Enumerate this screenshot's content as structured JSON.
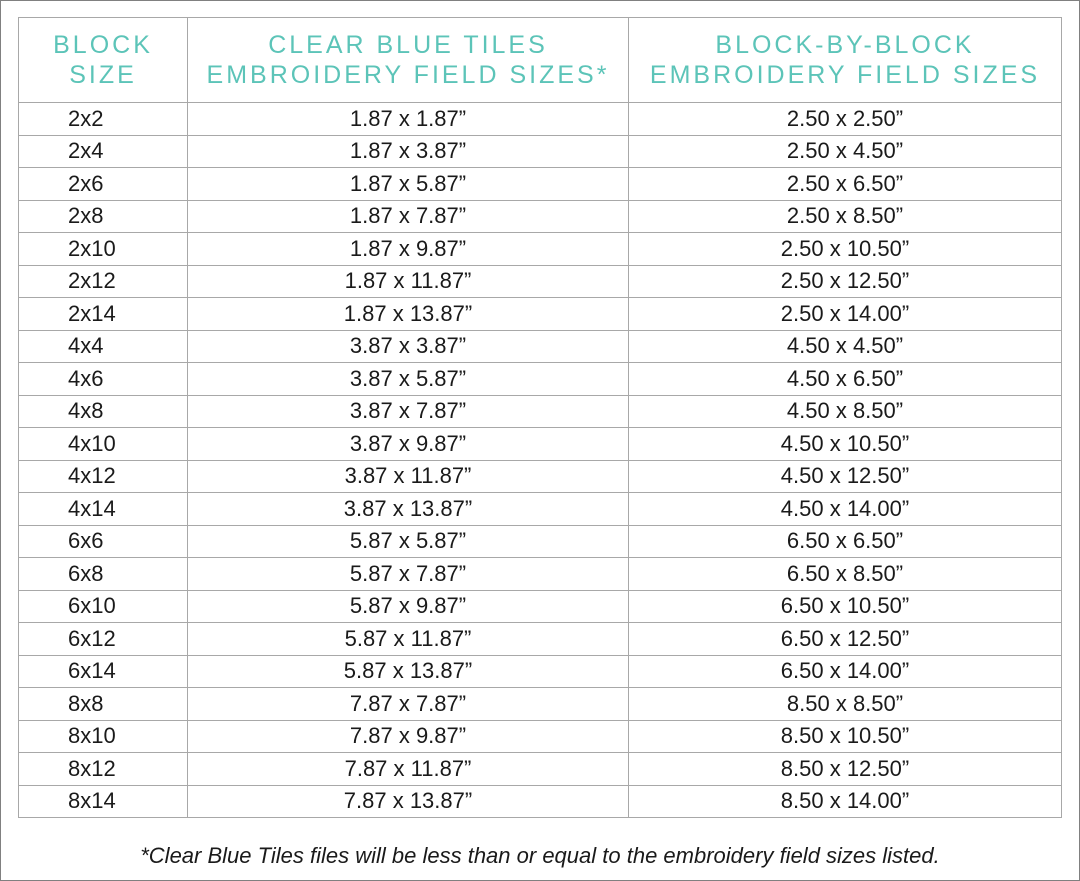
{
  "headers": [
    "BLOCK SIZE",
    "CLEAR BLUE TILES EMBROIDERY FIELD SIZES*",
    "BLOCK-BY-BLOCK EMBROIDERY FIELD SIZES"
  ],
  "header_lines": [
    [
      "BLOCK",
      "SIZE"
    ],
    [
      "CLEAR BLUE TILES",
      "EMBROIDERY FIELD SIZES*"
    ],
    [
      "BLOCK-BY-BLOCK",
      "EMBROIDERY FIELD SIZES"
    ]
  ],
  "rows": [
    [
      "2x2",
      "1.87 x 1.87”",
      "2.50 x 2.50”"
    ],
    [
      "2x4",
      "1.87 x 3.87”",
      "2.50 x 4.50”"
    ],
    [
      "2x6",
      "1.87 x 5.87”",
      "2.50 x 6.50”"
    ],
    [
      "2x8",
      "1.87 x 7.87”",
      "2.50 x 8.50”"
    ],
    [
      "2x10",
      "1.87 x 9.87”",
      "2.50 x 10.50”"
    ],
    [
      "2x12",
      "1.87 x 11.87”",
      "2.50 x 12.50”"
    ],
    [
      "2x14",
      "1.87 x 13.87”",
      "2.50 x 14.00”"
    ],
    [
      "4x4",
      "3.87 x 3.87”",
      "4.50 x 4.50”"
    ],
    [
      "4x6",
      "3.87 x 5.87”",
      "4.50 x 6.50”"
    ],
    [
      "4x8",
      "3.87 x 7.87”",
      "4.50 x 8.50”"
    ],
    [
      "4x10",
      "3.87 x 9.87”",
      "4.50 x 10.50”"
    ],
    [
      "4x12",
      "3.87 x 11.87”",
      "4.50 x 12.50”"
    ],
    [
      "4x14",
      "3.87 x 13.87”",
      "4.50 x 14.00”"
    ],
    [
      "6x6",
      "5.87 x 5.87”",
      "6.50 x 6.50”"
    ],
    [
      "6x8",
      "5.87 x 7.87”",
      "6.50 x 8.50”"
    ],
    [
      "6x10",
      "5.87 x 9.87”",
      "6.50 x 10.50”"
    ],
    [
      "6x12",
      "5.87 x 11.87”",
      "6.50 x 12.50”"
    ],
    [
      "6x14",
      "5.87 x 13.87”",
      "6.50 x 14.00”"
    ],
    [
      "8x8",
      "7.87 x 7.87”",
      "8.50 x 8.50”"
    ],
    [
      "8x10",
      "7.87 x 9.87”",
      "8.50 x 10.50”"
    ],
    [
      "8x12",
      "7.87 x 11.87”",
      "8.50 x 12.50”"
    ],
    [
      "8x14",
      "7.87 x 13.87”",
      "8.50 x 14.00”"
    ]
  ],
  "footnote": "*Clear Blue Tiles files will be less than or equal to the embroidery field sizes listed.",
  "colors": {
    "header_text": "#5cc4b8",
    "border": "#a8a8a8"
  }
}
